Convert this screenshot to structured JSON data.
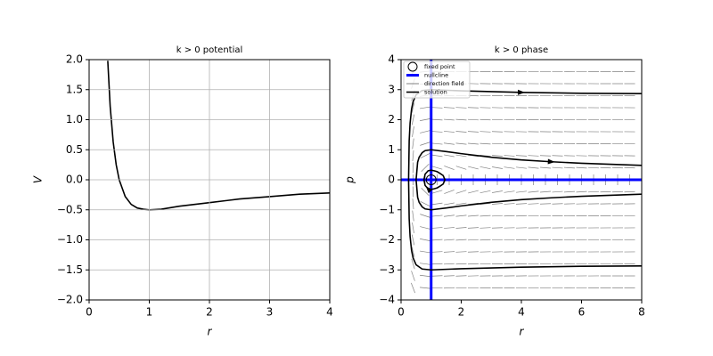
{
  "chart_data": [
    {
      "type": "line",
      "title": "k > 0 potential",
      "x_label": "r",
      "y_label": "V",
      "x": [
        0.31,
        0.35,
        0.4,
        0.45,
        0.5,
        0.6,
        0.7,
        0.8,
        0.9,
        1,
        1.2,
        1.5,
        2,
        2.5,
        3,
        3.5,
        4
      ],
      "values": [
        1.98,
        1.22,
        0.63,
        0.25,
        0,
        -0.28,
        -0.41,
        -0.47,
        -0.49,
        -0.5,
        -0.49,
        -0.44,
        -0.38,
        -0.32,
        -0.28,
        -0.24,
        -0.22
      ],
      "color": "#000000",
      "xlim": [
        0,
        4
      ],
      "ylim": [
        -2,
        2
      ],
      "xticks": [
        0,
        1,
        2,
        3,
        4
      ],
      "yticks": [
        {
          "value": -2,
          "label": "−2.0"
        },
        {
          "value": -1.5,
          "label": "−1.5"
        },
        {
          "value": -1,
          "label": "−1.0"
        },
        {
          "value": -0.5,
          "label": "−0.5"
        },
        {
          "value": 0,
          "label": "0.0"
        },
        0.5,
        {
          "value": 1,
          "label": "1.0"
        },
        1.5,
        {
          "value": 2,
          "label": "2.0"
        }
      ],
      "grid": true
    },
    {
      "type": "phase",
      "title": "k > 0 phase",
      "x_label": "r",
      "y_label": "p",
      "xlim": [
        0,
        8
      ],
      "ylim": [
        -4,
        4
      ],
      "xticks": [
        0,
        2,
        4,
        6,
        8
      ],
      "yticks": [
        {
          "value": -4,
          "label": "−4"
        },
        {
          "value": -3,
          "label": "−3"
        },
        {
          "value": -2,
          "label": "−2"
        },
        {
          "value": -1,
          "label": "−1"
        },
        0,
        1,
        2,
        3,
        4
      ],
      "grid": false,
      "legend_loc": "upper left",
      "legend": {
        "fixed_point": "fixed point",
        "nullcline": "nullcline",
        "direction_field": "direction field",
        "solution": "solution"
      },
      "fixed_points": [
        {
          "x": 1,
          "y": 0,
          "color": "#000000"
        }
      ],
      "nullclines": {
        "color": "#0000ff",
        "x": [
          1
        ],
        "y": [
          0
        ]
      },
      "direction_field": {
        "color": "#808080",
        "x": [
          0.4,
          0.8,
          1.2,
          1.6,
          2,
          2.4,
          2.8,
          3.2,
          3.6,
          4,
          4.4,
          4.8,
          5.2,
          5.6,
          6,
          6.4,
          6.8,
          7.2,
          7.6
        ],
        "y": [
          -3.6,
          -3.2,
          -2.8,
          -2.4,
          -2,
          -1.6,
          -1.2,
          -0.8,
          -0.4,
          0,
          0.4,
          0.8,
          1.2,
          1.6,
          2,
          2.4,
          2.8,
          3.2,
          3.6
        ]
      },
      "solutions": {
        "color": "#000000",
        "series": [
          {
            "x": [
              8,
              6,
              4,
              2,
              1,
              0.7,
              0.5,
              0.4,
              0.35,
              0.3,
              0.27,
              0.25,
              0.27,
              0.3,
              0.35,
              0.4,
              0.5,
              0.7,
              1,
              2,
              4,
              6,
              8
            ],
            "values": [
              -2.87,
              -2.88,
              -2.91,
              -2.96,
              -3,
              -2.97,
              -2.83,
              -2.6,
              -2.36,
              -1.89,
              -1.3,
              0,
              1.3,
              1.89,
              2.36,
              2.6,
              2.83,
              2.97,
              3,
              2.96,
              2.91,
              2.88,
              2.87
            ]
          },
          {
            "x": [
              8,
              6,
              5,
              4,
              3,
              2,
              1.5,
              1,
              0.8,
              0.7,
              0.6,
              0.55,
              0.5,
              0.55,
              0.6,
              0.7,
              0.8,
              1,
              1.5,
              2,
              3,
              4,
              5,
              6,
              8
            ],
            "values": [
              -0.48,
              -0.55,
              -0.6,
              -0.66,
              -0.75,
              -0.87,
              -0.94,
              -1,
              -0.97,
              -0.9,
              -0.75,
              -0.58,
              0,
              0.58,
              0.75,
              0.9,
              0.97,
              1,
              0.94,
              0.87,
              0.75,
              0.66,
              0.6,
              0.55,
              0.48
            ]
          },
          {
            "x": [
              0.76,
              0.8,
              0.9,
              1,
              1.1,
              1.2,
              1.3,
              1.4,
              1.46,
              1.4,
              1.3,
              1.2,
              1.1,
              1,
              0.9,
              0.8,
              0.76
            ],
            "values": [
              0,
              0.19,
              0.3,
              0.32,
              0.3,
              0.27,
              0.21,
              0.14,
              0,
              -0.14,
              -0.21,
              -0.27,
              -0.3,
              -0.32,
              -0.3,
              -0.19,
              0
            ]
          }
        ]
      }
    }
  ]
}
